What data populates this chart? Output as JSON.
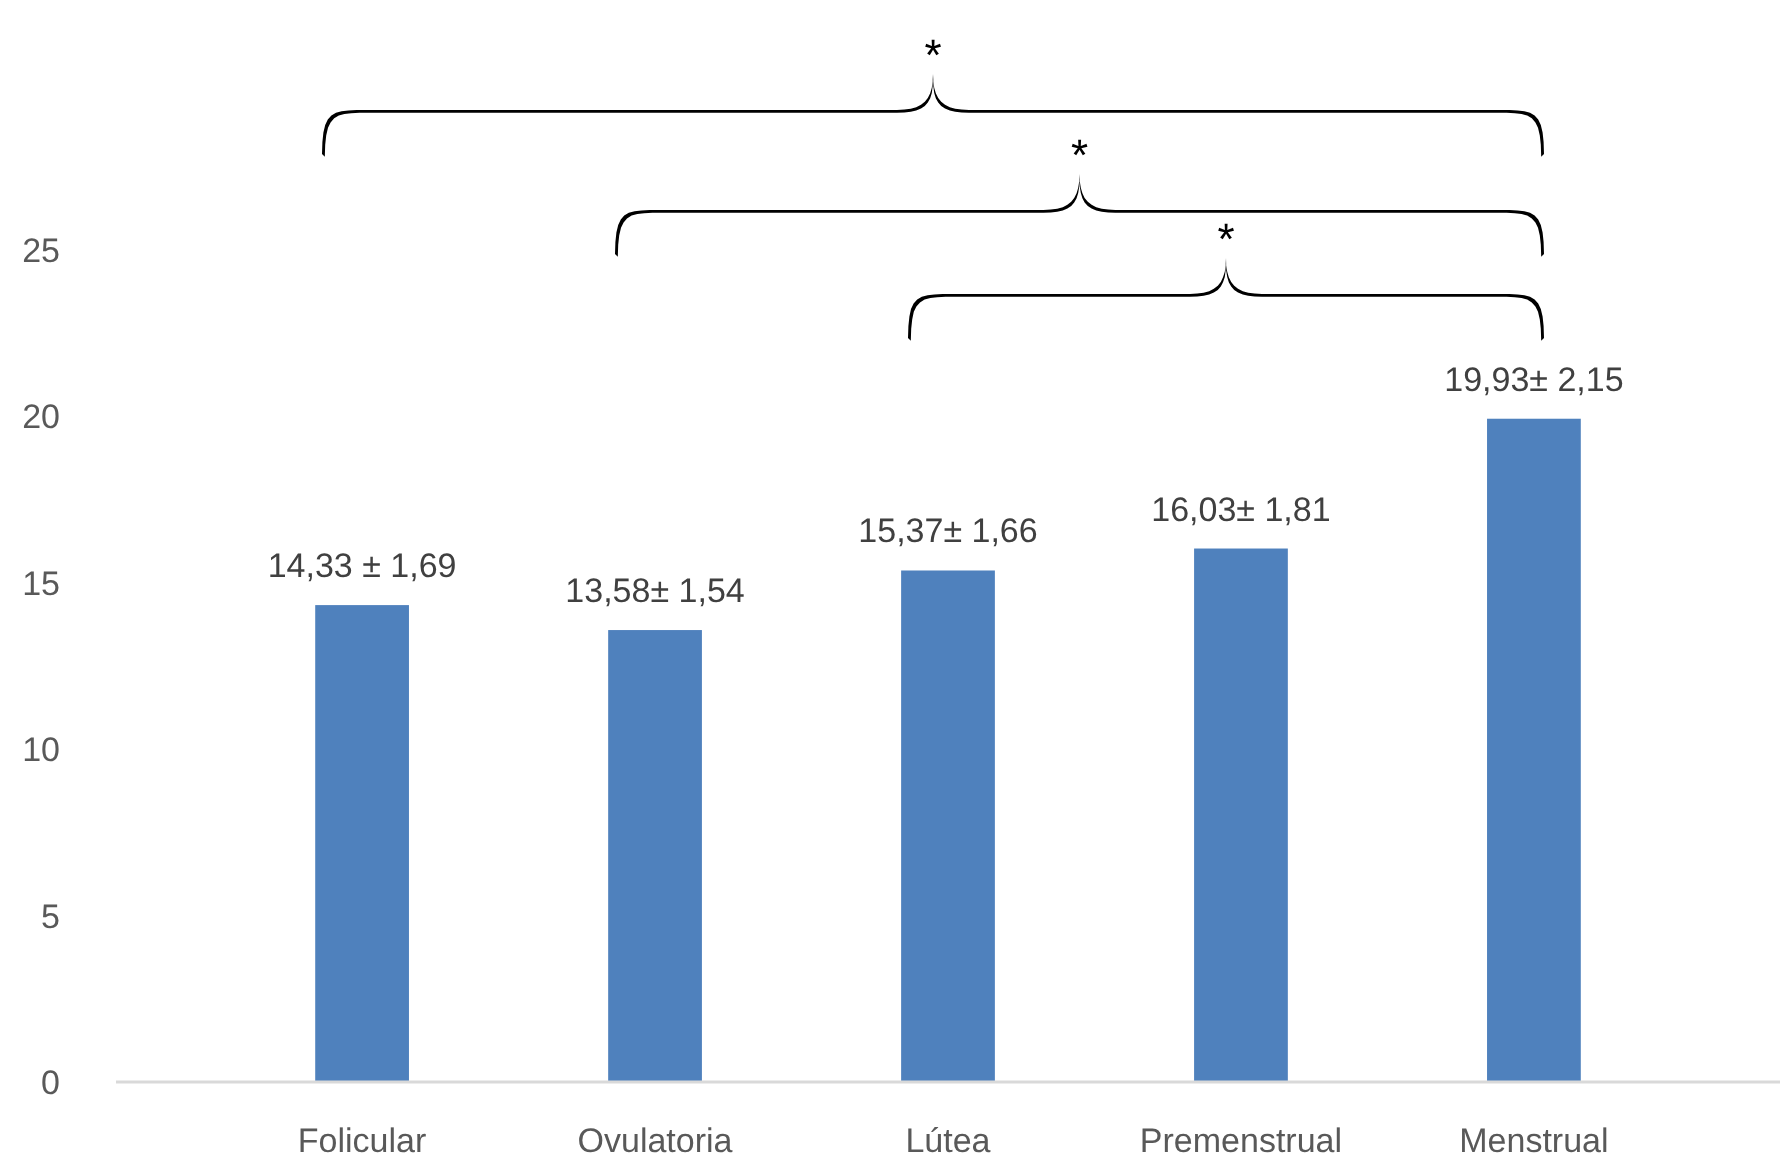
{
  "chart_data": {
    "type": "bar",
    "categories": [
      "Folicular",
      "Ovulatoria",
      "Lútea",
      "Premenstrual",
      "Menstrual"
    ],
    "values": [
      14.33,
      13.58,
      15.37,
      16.03,
      19.93
    ],
    "color": "#4f81bd",
    "value_labels": [
      "14,33 ± 1,69",
      "13,58± 1,54",
      "15,37± 1,66",
      "16,03± 1,81",
      "19,93± 2,15"
    ],
    "ylim": [
      0,
      25
    ],
    "yticks": [
      0,
      5,
      10,
      15,
      20,
      25
    ],
    "grid": false,
    "annotations": [
      "*",
      "*",
      "*"
    ]
  }
}
